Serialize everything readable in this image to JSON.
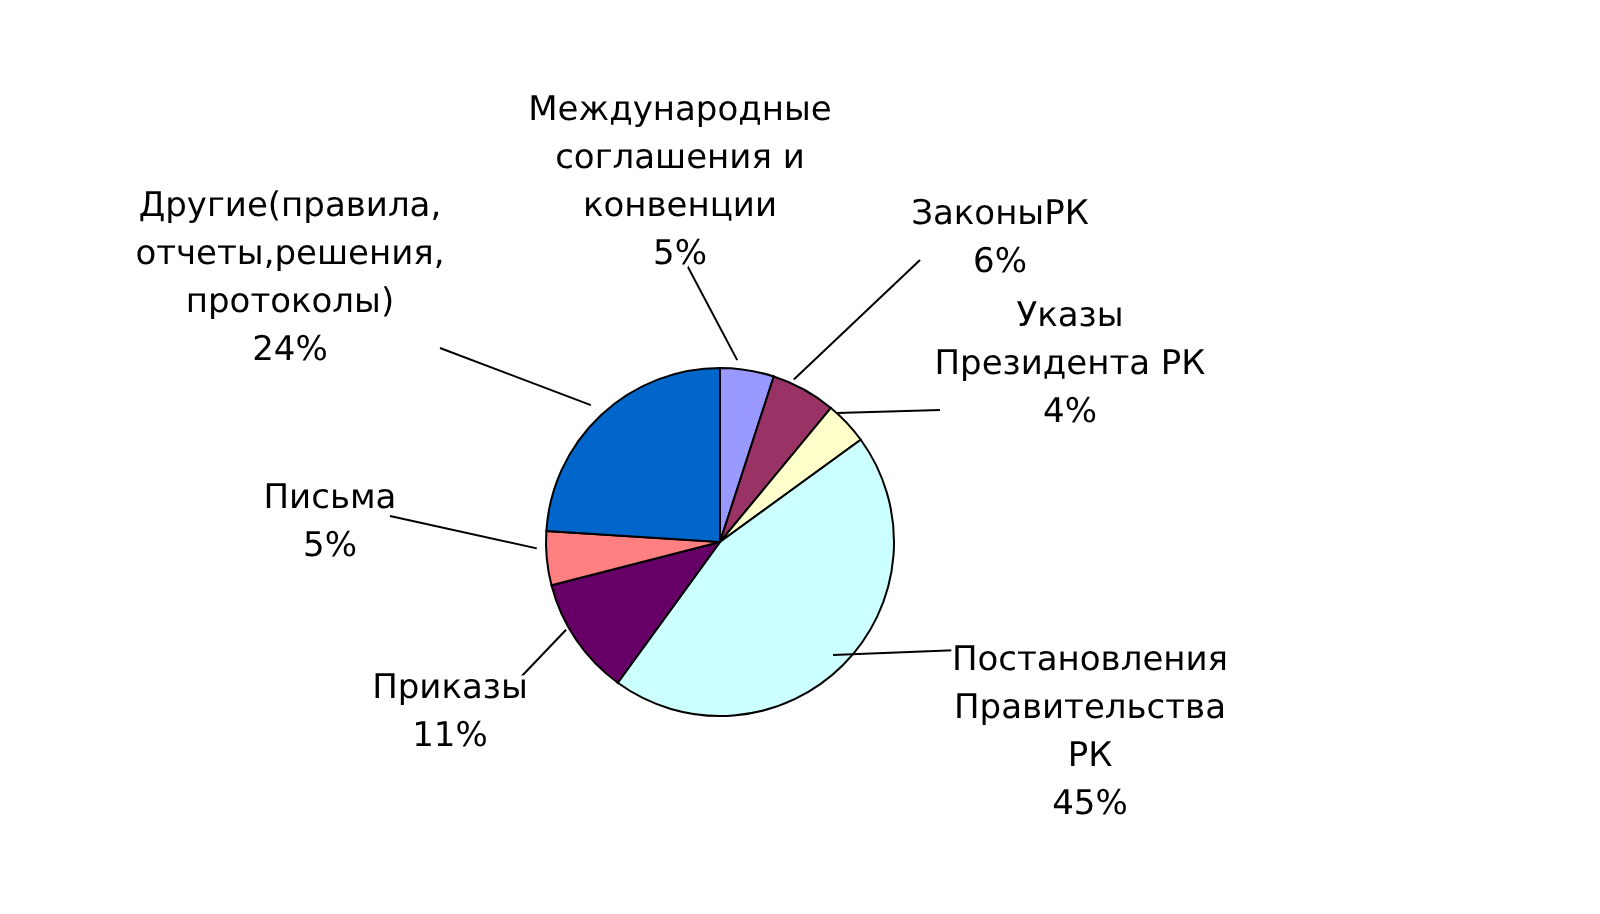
{
  "chart_data": {
    "type": "pie",
    "categories": [
      "Международные\nсоглашения и\nконвенции",
      "ЗаконыРК",
      "Указы\nПрезидента РК",
      "Постановления\nПравительства\nРК",
      "Приказы",
      "Письма",
      "Другие(правила,\nотчеты,решения,\nпротоколы)"
    ],
    "values": [
      5,
      6,
      4,
      45,
      11,
      5,
      24
    ],
    "value_labels": [
      "5%",
      "6%",
      "4%",
      "45%",
      "11%",
      "5%",
      "24%"
    ],
    "colors": [
      "#9999ff",
      "#993366",
      "#ffffcc",
      "#ccffff",
      "#660066",
      "#ff8080",
      "#0066cc"
    ]
  }
}
